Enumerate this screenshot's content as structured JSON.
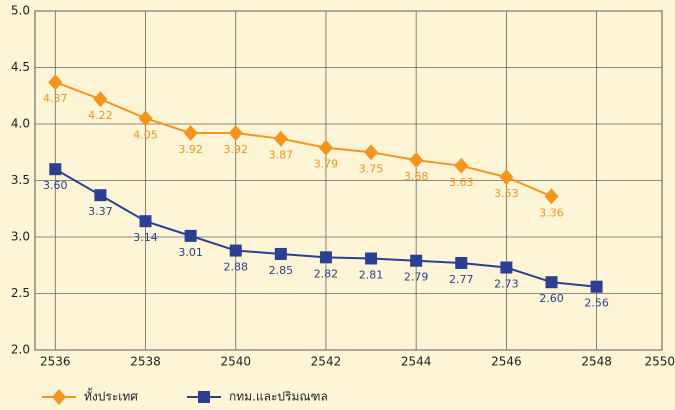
{
  "chart_data": {
    "type": "line",
    "x": [
      2536,
      2537,
      2538,
      2539,
      2540,
      2541,
      2542,
      2543,
      2544,
      2545,
      2546,
      2547,
      2548
    ],
    "series": [
      {
        "name": "ทั้งประเทศ",
        "color": "#f7941d",
        "marker": "diamond",
        "values": [
          4.37,
          4.22,
          4.05,
          3.92,
          3.92,
          3.87,
          3.79,
          3.75,
          3.68,
          3.63,
          3.53,
          3.36,
          null
        ],
        "value_labels": [
          "4.37",
          "4.22",
          "4.05",
          "3.92",
          "3.92",
          "3.87",
          "3.79",
          "3.75",
          "3.68",
          "3.63",
          "3.53",
          "3.36",
          null
        ]
      },
      {
        "name": "กทม.และปริมณฑล",
        "color": "#2b3f94",
        "marker": "square",
        "values": [
          3.6,
          3.37,
          3.14,
          3.01,
          2.88,
          2.85,
          2.82,
          2.81,
          2.79,
          2.77,
          2.73,
          2.6,
          2.56
        ],
        "value_labels": [
          "3.60",
          "3.37",
          "3.14",
          "3.01",
          "2.88",
          "2.85",
          "2.82",
          "2.81",
          "2.79",
          "2.77",
          "2.73",
          "2.60",
          "2.56"
        ]
      }
    ],
    "xlim": [
      2535.55,
      2549.45
    ],
    "xticks": [
      2536,
      2538,
      2540,
      2542,
      2544,
      2546,
      2548,
      2550
    ],
    "ylim": [
      2.0,
      5.0
    ],
    "yticks": [
      {
        "value": 2.0,
        "label": "2.0"
      },
      {
        "value": 2.5,
        "label": "2.5"
      },
      {
        "value": 3.0,
        "label": "3.0"
      },
      {
        "value": 3.5,
        "label": "3.5"
      },
      {
        "value": 4.0,
        "label": "4.0"
      },
      {
        "value": 4.5,
        "label": "4.5"
      },
      {
        "value": 5.0,
        "label": "5.0"
      }
    ],
    "grid": true,
    "legend": "bottom-left"
  }
}
